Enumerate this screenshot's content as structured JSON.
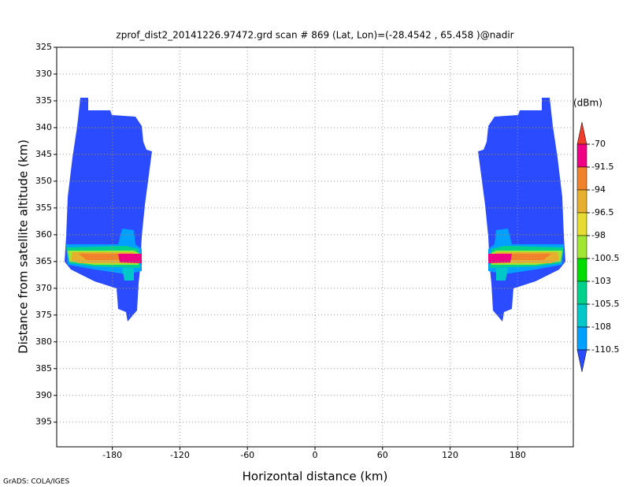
{
  "chart_data": {
    "type": "contour",
    "title": "zprof_dist2_20141226.97472.grd  scan # 869  (Lat, Lon)=(-28.4542 , 65.458 )@nadir",
    "xlabel": "Horizontal distance (km)",
    "ylabel": "Distance from satellite altitude (km)",
    "footer": "GrADS: COLA/IGES",
    "xlim": [
      -229.4,
      229.4
    ],
    "xticks": [
      -180,
      -120,
      -60,
      0,
      60,
      120,
      180
    ],
    "ylim": [
      325,
      399.6
    ],
    "yticks": [
      325,
      330,
      335,
      340,
      345,
      350,
      355,
      360,
      365,
      370,
      375,
      380,
      385,
      390,
      395
    ],
    "y_reversed": true,
    "grid": true,
    "colorbar": {
      "unit": "(dBm)",
      "levels": [
        -70,
        -91.5,
        -94,
        -96.5,
        -98,
        -100.5,
        -103,
        -105.5,
        -108,
        -110.5
      ],
      "colors": [
        "#f03c2b",
        "#f00082",
        "#f0822b",
        "#e6af2d",
        "#e6dc32",
        "#a0e632",
        "#00dc00",
        "#00d28c",
        "#00c8c8",
        "#00a0ff",
        "#2a4bff"
      ]
    }
  }
}
